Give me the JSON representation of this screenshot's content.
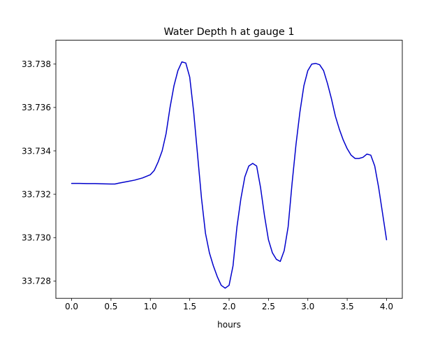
{
  "chart_data": {
    "type": "line",
    "title": "Water Depth h at gauge 1",
    "xlabel": "hours",
    "ylabel": "",
    "xlim": [
      -0.2,
      4.2
    ],
    "ylim": [
      33.7272,
      33.7391
    ],
    "xticks": [
      0.0,
      0.5,
      1.0,
      1.5,
      2.0,
      2.5,
      3.0,
      3.5,
      4.0
    ],
    "xtick_labels": [
      "0.0",
      "0.5",
      "1.0",
      "1.5",
      "2.0",
      "2.5",
      "3.0",
      "3.5",
      "4.0"
    ],
    "yticks": [
      33.728,
      33.73,
      33.732,
      33.734,
      33.736,
      33.738
    ],
    "ytick_labels": [
      "33.728",
      "33.730",
      "33.732",
      "33.734",
      "33.736",
      "33.738"
    ],
    "grid": false,
    "legend": "none",
    "series": [
      {
        "color": "#0000cc",
        "x": [
          0.0,
          0.1,
          0.2,
          0.3,
          0.4,
          0.5,
          0.55,
          0.6,
          0.7,
          0.8,
          0.9,
          1.0,
          1.05,
          1.1,
          1.15,
          1.2,
          1.25,
          1.3,
          1.35,
          1.4,
          1.45,
          1.5,
          1.55,
          1.6,
          1.65,
          1.7,
          1.75,
          1.8,
          1.85,
          1.9,
          1.95,
          2.0,
          2.05,
          2.1,
          2.15,
          2.2,
          2.25,
          2.3,
          2.35,
          2.4,
          2.45,
          2.5,
          2.55,
          2.6,
          2.65,
          2.7,
          2.75,
          2.8,
          2.85,
          2.9,
          2.95,
          3.0,
          3.05,
          3.1,
          3.15,
          3.2,
          3.25,
          3.3,
          3.35,
          3.4,
          3.45,
          3.5,
          3.55,
          3.6,
          3.65,
          3.7,
          3.75,
          3.8,
          3.85,
          3.9,
          3.95,
          4.0
        ],
        "y": [
          33.7325,
          33.7325,
          33.73249,
          33.73249,
          33.73248,
          33.73247,
          33.73247,
          33.73251,
          33.73258,
          33.73265,
          33.73275,
          33.7329,
          33.7331,
          33.7335,
          33.734,
          33.7348,
          33.736,
          33.737,
          33.7377,
          33.7381,
          33.73805,
          33.7374,
          33.7358,
          33.7338,
          33.7318,
          33.7302,
          33.7293,
          33.7287,
          33.7282,
          33.7278,
          33.72767,
          33.7278,
          33.7287,
          33.7305,
          33.7318,
          33.7328,
          33.7333,
          33.73342,
          33.7333,
          33.7323,
          33.731,
          33.7299,
          33.7293,
          33.729,
          33.7289,
          33.7294,
          33.7305,
          33.7325,
          33.7343,
          33.7358,
          33.737,
          33.7377,
          33.738,
          33.73803,
          33.73797,
          33.7377,
          33.7371,
          33.7364,
          33.7356,
          33.735,
          33.7345,
          33.7341,
          33.7338,
          33.73365,
          33.73365,
          33.7337,
          33.73385,
          33.7338,
          33.7333,
          33.7323,
          33.7311,
          33.7299
        ]
      }
    ]
  }
}
